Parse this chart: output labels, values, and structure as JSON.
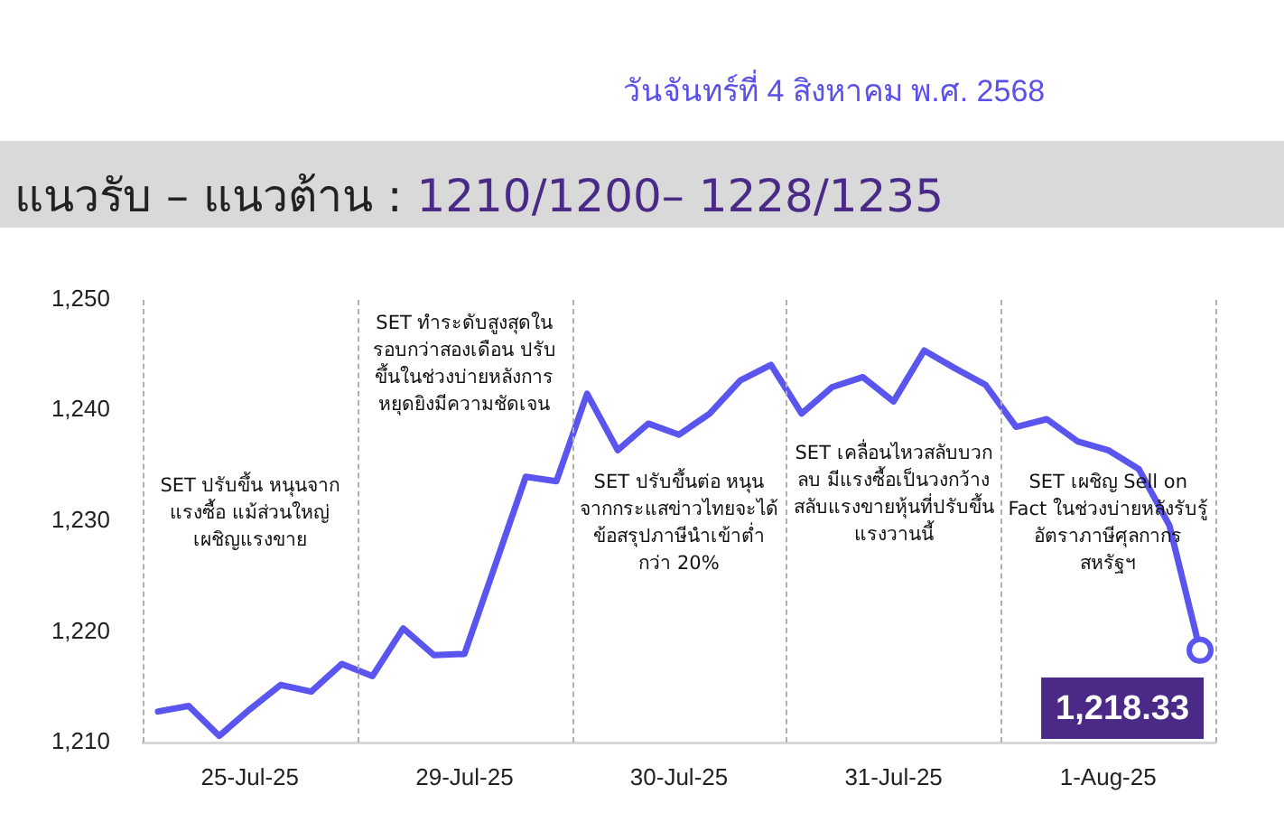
{
  "chart_data": {
    "type": "line",
    "title": "แนวรับ – แนวต้าน : 1210/1200– 1228/1235",
    "subtitle": "วันจันทร์ที่ 4 สิงหาคม พ.ศ. 2568",
    "categories": [
      null,
      null,
      null,
      "25-Jul-25",
      null,
      null,
      null,
      null,
      null,
      null,
      "29-Jul-25",
      null,
      null,
      null,
      null,
      null,
      null,
      "30-Jul-25",
      null,
      null,
      null,
      null,
      null,
      null,
      "31-Jul-25",
      null,
      null,
      null,
      null,
      null,
      null,
      "1-Aug-25",
      null,
      null,
      null
    ],
    "series": [
      {
        "color": "#5b55f0",
        "values": [
          1212.8,
          1213.3,
          1210.6,
          1213,
          1215.2,
          1214.6,
          1217.1,
          1216,
          1220.3,
          1217.9,
          1218,
          1226,
          1234,
          1233.6,
          1241.5,
          1236.4,
          1238.8,
          1237.8,
          1239.7,
          1242.7,
          1244.1,
          1239.7,
          1242.1,
          1243,
          1240.8,
          1245.4,
          1243.8,
          1242.3,
          1238.5,
          1239.2,
          1237.2,
          1236.4,
          1234.7,
          1229.6,
          1218.33
        ],
        "value_labels": [
          null,
          null,
          null,
          null,
          null,
          null,
          null,
          null,
          null,
          null,
          null,
          null,
          null,
          null,
          null,
          null,
          null,
          null,
          null,
          null,
          null,
          null,
          null,
          null,
          null,
          null,
          null,
          null,
          null,
          null,
          null,
          null,
          null,
          null,
          "1,218.33"
        ]
      }
    ],
    "ylim": [
      1210,
      1250
    ],
    "yticks": [
      {
        "value": 1210,
        "label": "1,210"
      },
      {
        "value": 1220,
        "label": "1,220"
      },
      {
        "value": 1230,
        "label": "1,230"
      },
      {
        "value": 1240,
        "label": "1,240"
      },
      {
        "value": 1250,
        "label": "1,250"
      }
    ],
    "grid": false,
    "legend": false,
    "marker": "none",
    "line_style": "solid",
    "annotations": [
      "SET ปรับขึ้น หนุนจากแรงซื้อ แม้ส่วนใหญ่เผชิญแรงขาย",
      "SET ทำระดับสูงสุดในรอบกว่าสองเดือน ปรับขึ้นในช่วงบ่ายหลังการหยุดยิงมีความชัดเจน",
      "SET ปรับขึ้นต่อ หนุนจากกระแสข่าวไทยจะได้ข้อสรุปภาษีนำเข้าต่ำกว่า 20%",
      "SET เคลื่อนไหวสลับบวกลบ มีแรงซื้อเป็นวงกว้างสลับแรงขายหุ้นที่ปรับขึ้นแรงวานนี้",
      "SET เผชิญ Sell on Fact ในช่วงบ่ายหลังรับรู้อัตราภาษีศุลกากรสหรัฐฯ"
    ]
  }
}
